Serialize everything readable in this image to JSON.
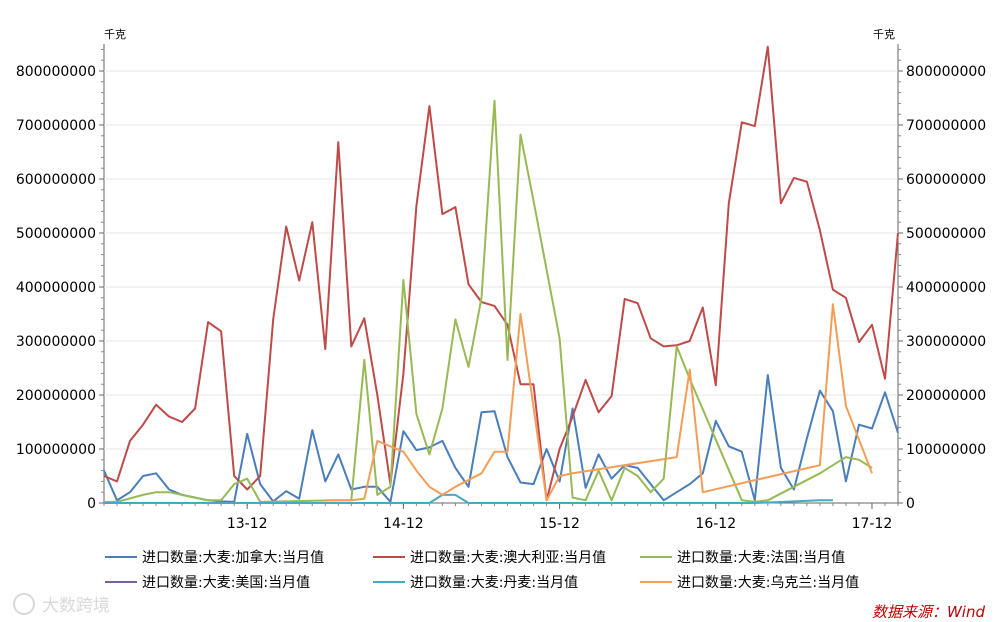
{
  "chart_data": {
    "type": "line",
    "unit_left": "千克",
    "unit_right": "千克",
    "ylim": [
      0,
      850000000
    ],
    "y_ticks": [
      "0",
      "100000000",
      "200000000",
      "300000000",
      "400000000",
      "500000000",
      "600000000",
      "700000000",
      "800000000"
    ],
    "y_tick_values": [
      0,
      100000000,
      200000000,
      300000000,
      400000000,
      500000000,
      600000000,
      700000000,
      800000000
    ],
    "x_index_range": [
      0,
      61
    ],
    "x_ticks": [
      {
        "label": "13-12",
        "index": 11
      },
      {
        "label": "14-12",
        "index": 23
      },
      {
        "label": "15-12",
        "index": 35
      },
      {
        "label": "16-12",
        "index": 47
      },
      {
        "label": "17-12",
        "index": 59
      }
    ],
    "series": [
      {
        "name": "进口数量:大麦:加拿大:当月值",
        "color": "#4a7ebb",
        "points": [
          [
            0,
            60000000
          ],
          [
            1,
            5000000
          ],
          [
            2,
            20000000
          ],
          [
            3,
            50000000
          ],
          [
            4,
            55000000
          ],
          [
            5,
            25000000
          ],
          [
            6,
            15000000
          ],
          [
            7,
            10000000
          ],
          [
            8,
            5000000
          ],
          [
            9,
            3000000
          ],
          [
            10,
            2000000
          ],
          [
            11,
            128000000
          ],
          [
            12,
            35000000
          ],
          [
            13,
            3000000
          ],
          [
            14,
            22000000
          ],
          [
            15,
            8000000
          ],
          [
            16,
            135000000
          ],
          [
            17,
            40000000
          ],
          [
            18,
            90000000
          ],
          [
            19,
            25000000
          ],
          [
            20,
            30000000
          ],
          [
            21,
            30000000
          ],
          [
            22,
            2000000
          ],
          [
            23,
            133000000
          ],
          [
            24,
            98000000
          ],
          [
            25,
            103000000
          ],
          [
            26,
            115000000
          ],
          [
            27,
            65000000
          ],
          [
            28,
            30000000
          ],
          [
            29,
            168000000
          ],
          [
            30,
            170000000
          ],
          [
            31,
            85000000
          ],
          [
            32,
            38000000
          ],
          [
            33,
            35000000
          ],
          [
            34,
            100000000
          ],
          [
            35,
            40000000
          ],
          [
            36,
            175000000
          ],
          [
            37,
            28000000
          ],
          [
            38,
            90000000
          ],
          [
            39,
            45000000
          ],
          [
            40,
            70000000
          ],
          [
            41,
            65000000
          ],
          [
            42,
            35000000
          ],
          [
            43,
            5000000
          ],
          [
            44,
            20000000
          ],
          [
            45,
            35000000
          ],
          [
            46,
            55000000
          ],
          [
            47,
            152000000
          ],
          [
            48,
            105000000
          ],
          [
            49,
            95000000
          ],
          [
            50,
            5000000
          ],
          [
            51,
            237000000
          ],
          [
            52,
            65000000
          ],
          [
            53,
            25000000
          ],
          [
            54,
            120000000
          ],
          [
            55,
            208000000
          ],
          [
            56,
            170000000
          ],
          [
            57,
            40000000
          ],
          [
            58,
            145000000
          ],
          [
            59,
            138000000
          ],
          [
            60,
            205000000
          ],
          [
            61,
            130000000
          ]
        ]
      },
      {
        "name": "进口数量:大麦:澳大利亚:当月值",
        "color": "#be4b48",
        "points": [
          [
            0,
            50000000
          ],
          [
            1,
            40000000
          ],
          [
            2,
            115000000
          ],
          [
            3,
            145000000
          ],
          [
            4,
            182000000
          ],
          [
            5,
            160000000
          ],
          [
            6,
            150000000
          ],
          [
            7,
            175000000
          ],
          [
            8,
            335000000
          ],
          [
            9,
            318000000
          ],
          [
            10,
            50000000
          ],
          [
            11,
            25000000
          ],
          [
            12,
            50000000
          ],
          [
            13,
            340000000
          ],
          [
            14,
            512000000
          ],
          [
            15,
            412000000
          ],
          [
            16,
            520000000
          ],
          [
            17,
            285000000
          ],
          [
            18,
            668000000
          ],
          [
            19,
            290000000
          ],
          [
            20,
            342000000
          ],
          [
            21,
            200000000
          ],
          [
            22,
            35000000
          ],
          [
            23,
            240000000
          ],
          [
            24,
            550000000
          ],
          [
            25,
            735000000
          ],
          [
            26,
            535000000
          ],
          [
            27,
            548000000
          ],
          [
            28,
            405000000
          ],
          [
            29,
            372000000
          ],
          [
            30,
            365000000
          ],
          [
            31,
            330000000
          ],
          [
            32,
            220000000
          ],
          [
            33,
            220000000
          ],
          [
            34,
            5000000
          ],
          [
            35,
            100000000
          ],
          [
            36,
            160000000
          ],
          [
            37,
            228000000
          ],
          [
            38,
            168000000
          ],
          [
            39,
            198000000
          ],
          [
            40,
            378000000
          ],
          [
            41,
            370000000
          ],
          [
            42,
            305000000
          ],
          [
            43,
            290000000
          ],
          [
            44,
            292000000
          ],
          [
            45,
            300000000
          ],
          [
            46,
            362000000
          ],
          [
            47,
            218000000
          ],
          [
            48,
            555000000
          ],
          [
            49,
            705000000
          ],
          [
            50,
            698000000
          ],
          [
            51,
            845000000
          ],
          [
            52,
            555000000
          ],
          [
            53,
            602000000
          ],
          [
            54,
            595000000
          ],
          [
            55,
            505000000
          ],
          [
            56,
            395000000
          ],
          [
            57,
            380000000
          ],
          [
            58,
            298000000
          ],
          [
            59,
            330000000
          ],
          [
            60,
            230000000
          ],
          [
            61,
            500000000
          ]
        ]
      },
      {
        "name": "进口数量:大麦:法国:当月值",
        "color": "#98b954",
        "points": [
          [
            0,
            2000000
          ],
          [
            1,
            2000000
          ],
          [
            3,
            15000000
          ],
          [
            4,
            20000000
          ],
          [
            5,
            20000000
          ],
          [
            6,
            15000000
          ],
          [
            7,
            10000000
          ],
          [
            8,
            5000000
          ],
          [
            9,
            5000000
          ],
          [
            10,
            35000000
          ],
          [
            11,
            45000000
          ],
          [
            12,
            2000000
          ],
          [
            18,
            5000000
          ],
          [
            19,
            5000000
          ],
          [
            20,
            265000000
          ],
          [
            21,
            15000000
          ],
          [
            22,
            30000000
          ],
          [
            23,
            413000000
          ],
          [
            24,
            165000000
          ],
          [
            25,
            90000000
          ],
          [
            26,
            175000000
          ],
          [
            27,
            340000000
          ],
          [
            28,
            252000000
          ],
          [
            29,
            380000000
          ],
          [
            30,
            745000000
          ],
          [
            31,
            265000000
          ],
          [
            32,
            682000000
          ],
          [
            33,
            560000000
          ],
          [
            35,
            305000000
          ],
          [
            36,
            10000000
          ],
          [
            37,
            5000000
          ],
          [
            38,
            60000000
          ],
          [
            39,
            5000000
          ],
          [
            40,
            65000000
          ],
          [
            41,
            50000000
          ],
          [
            42,
            20000000
          ],
          [
            43,
            45000000
          ],
          [
            44,
            290000000
          ],
          [
            45,
            230000000
          ],
          [
            49,
            5000000
          ],
          [
            50,
            2000000
          ],
          [
            51,
            5000000
          ],
          [
            55,
            55000000
          ],
          [
            56,
            70000000
          ],
          [
            57,
            85000000
          ],
          [
            58,
            80000000
          ],
          [
            59,
            65000000
          ]
        ]
      },
      {
        "name": "进口数量:大麦:美国:当月值",
        "color": "#7d60a0",
        "points": [
          [
            0,
            0
          ],
          [
            2,
            0
          ],
          [
            4,
            0
          ],
          [
            6,
            0
          ],
          [
            8,
            0
          ],
          [
            9,
            0
          ]
        ]
      },
      {
        "name": "进口数量:大麦:丹麦:当月值",
        "color": "#46aac4",
        "points": [
          [
            0,
            0
          ],
          [
            5,
            0
          ],
          [
            10,
            0
          ],
          [
            15,
            0
          ],
          [
            20,
            0
          ],
          [
            25,
            0
          ],
          [
            26,
            15000000
          ],
          [
            27,
            15000000
          ],
          [
            28,
            0
          ],
          [
            30,
            0
          ],
          [
            35,
            0
          ],
          [
            40,
            0
          ],
          [
            45,
            0
          ],
          [
            50,
            0
          ],
          [
            55,
            5000000
          ],
          [
            56,
            5000000
          ]
        ]
      },
      {
        "name": "进口数量:大麦:乌克兰:当月值",
        "color": "#f59d56",
        "points": [
          [
            17,
            5000000
          ],
          [
            18,
            5000000
          ],
          [
            19,
            5000000
          ],
          [
            20,
            8000000
          ],
          [
            21,
            115000000
          ],
          [
            23,
            95000000
          ],
          [
            24,
            60000000
          ],
          [
            25,
            30000000
          ],
          [
            26,
            15000000
          ],
          [
            27,
            30000000
          ],
          [
            29,
            55000000
          ],
          [
            30,
            95000000
          ],
          [
            31,
            95000000
          ],
          [
            32,
            350000000
          ],
          [
            34,
            5000000
          ],
          [
            35,
            50000000
          ],
          [
            36,
            55000000
          ],
          [
            44,
            85000000
          ],
          [
            45,
            247000000
          ],
          [
            46,
            20000000
          ],
          [
            55,
            70000000
          ],
          [
            56,
            368000000
          ],
          [
            57,
            180000000
          ],
          [
            59,
            55000000
          ]
        ]
      }
    ]
  },
  "source": "数据来源：Wind",
  "watermark": "大数跨境"
}
